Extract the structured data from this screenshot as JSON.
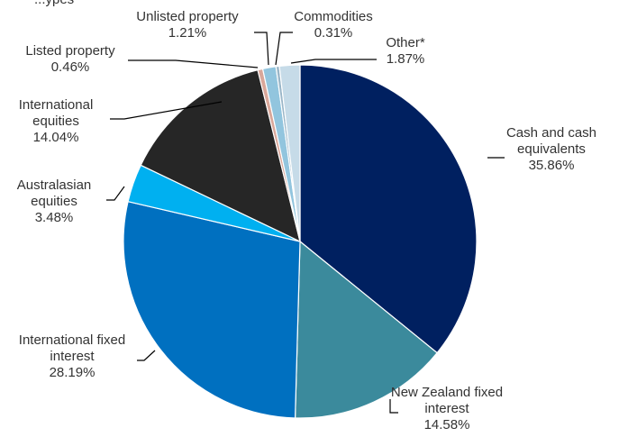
{
  "chart_data": {
    "type": "pie",
    "title": "",
    "title_fragment": "...ypes",
    "start_angle_deg": 0,
    "direction": "clockwise",
    "slices": [
      {
        "name": "Cash and cash equivalents",
        "lines": [
          "Cash and cash",
          "equivalents"
        ],
        "value": 35.86,
        "label": "35.86%",
        "color": "#002060"
      },
      {
        "name": "New Zealand fixed interest",
        "lines": [
          "New Zealand fixed",
          "interest"
        ],
        "value": 14.58,
        "label": "14.58%",
        "color": "#3b8a9c"
      },
      {
        "name": "International fixed interest",
        "lines": [
          "International fixed",
          "interest"
        ],
        "value": 28.19,
        "label": "28.19%",
        "color": "#0070c0"
      },
      {
        "name": "Australasian equities",
        "lines": [
          "Australasian",
          "equities"
        ],
        "value": 3.48,
        "label": "3.48%",
        "color": "#00b0f0"
      },
      {
        "name": "International equities",
        "lines": [
          "International",
          "equities"
        ],
        "value": 14.04,
        "label": "14.04%",
        "color": "#262626"
      },
      {
        "name": "Listed property",
        "lines": [
          "Listed property"
        ],
        "value": 0.46,
        "label": "0.46%",
        "color": "#d9a79a"
      },
      {
        "name": "Unlisted property",
        "lines": [
          "Unlisted property"
        ],
        "value": 1.21,
        "label": "1.21%",
        "color": "#92c5de"
      },
      {
        "name": "Commodities",
        "lines": [
          "Commodities"
        ],
        "value": 0.31,
        "label": "0.31%",
        "color": "#9ab6c8"
      },
      {
        "name": "Other*",
        "lines": [
          "Other*"
        ],
        "value": 1.87,
        "label": "1.87%",
        "color": "#c6dbe8"
      }
    ],
    "legend": "none"
  }
}
